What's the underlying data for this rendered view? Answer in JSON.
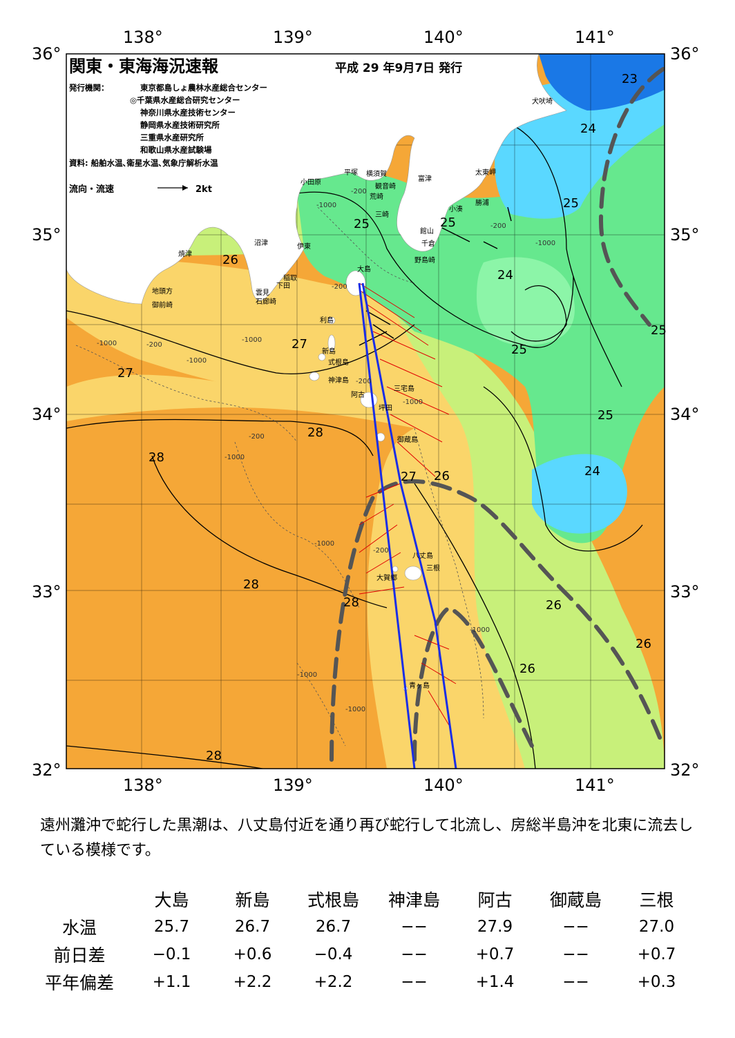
{
  "header": {
    "title": "関東・東海海況速報",
    "date": "平成 29 年9月7日 発行",
    "publisher_label": "発行機関：",
    "publishers": [
      "東京都島しょ農林水産総合センター",
      "◎千葉県水産総合研究センター",
      "神奈川県水産技術センター",
      "静岡県水産技術研究所",
      "三重県水産研究所",
      "和歌山県水産試験場"
    ],
    "source": "資料: 船舶水温､衛星水温､気象庁解析水温",
    "legend_label": "流向・流速",
    "legend_scale": "2kt"
  },
  "axes": {
    "lon_ticks": [
      "138°",
      "139°",
      "140°",
      "141°"
    ],
    "lat_ticks": [
      "36°",
      "35°",
      "34°",
      "33°",
      "32°"
    ]
  },
  "isotherm_labels": [
    "23",
    "24",
    "25",
    "25",
    "25",
    "25",
    "24",
    "25",
    "25",
    "26",
    "26",
    "27",
    "27",
    "28",
    "28",
    "28",
    "26",
    "27",
    "24",
    "28",
    "26",
    "26",
    "28",
    "27"
  ],
  "depth_labels": [
    "-200",
    "-1000",
    "-200",
    "-1000",
    "-1000",
    "-200",
    "-200",
    "-1000",
    "-1000",
    "-200",
    "-1000",
    "-1000",
    "-200",
    "-1000",
    "-1000",
    "-1000",
    "-200",
    "-1000"
  ],
  "places": {
    "inubozaki": "犬吠埼",
    "taitozaki": "太東岬",
    "katsuura": "勝浦",
    "kominato": "小湊",
    "futtsu": "富津",
    "yokosuka": "横須賀",
    "kannonzaki": "観音崎",
    "arasaki": "荒崎",
    "misaki": "三崎",
    "tateyama": "館山",
    "chikura": "千倉",
    "nojimazaki": "野島崎",
    "hiratsuka": "平塚",
    "odawara": "小田原",
    "ito": "伊東",
    "numazu": "沼津",
    "yaizu": "焼津",
    "inatori": "稲取",
    "shimoda": "下田",
    "mera": "雲見",
    "irozaki": "石廊崎",
    "jitogata": "地頭方",
    "omaezaki": "御前崎",
    "oshima": "大島",
    "toshima": "利島",
    "niijima": "新島",
    "shikinejima": "式根島",
    "kozushima": "神津島",
    "ako": "阿古",
    "miyake": "三宅島",
    "tsubota": "坪田",
    "mikurajima": "御蔵島",
    "hachijojima": "八丈島",
    "mitsune": "三根",
    "hachijokojima": "大賀郷",
    "aogashima": "青ヶ島"
  },
  "colors": {
    "t23": "#1a78e6",
    "t24": "#5ad8ff",
    "t24b": "#9ff0ff",
    "t25": "#66e88e",
    "t25b": "#8cf5a8",
    "t26": "#c8f07a",
    "t27": "#fad56a",
    "t28": "#f5a737",
    "land": "#ffffff",
    "kuroshio": "#555555",
    "current": "#e00000",
    "route": "#1a2ee6"
  },
  "summary": "遠州灘沖で蛇行した黒潮は、八丈島付近を通り再び蛇行して北流し、房総半島沖を北東に流去している模様です。",
  "table": {
    "stations": [
      "大島",
      "新島",
      "式根島",
      "神津島",
      "阿古",
      "御蔵島",
      "三根"
    ],
    "rows": [
      {
        "label": "水温",
        "values": [
          "25.7",
          "26.7",
          "26.7",
          "−−",
          "27.9",
          "−−",
          "27.0"
        ]
      },
      {
        "label": "前日差",
        "values": [
          "−0.1",
          "+0.6",
          "−0.4",
          "−−",
          "+0.7",
          "−−",
          "+0.7"
        ]
      },
      {
        "label": "平年偏差",
        "values": [
          "+1.1",
          "+2.2",
          "+2.2",
          "−−",
          "+1.4",
          "−−",
          "+0.3"
        ]
      }
    ]
  }
}
